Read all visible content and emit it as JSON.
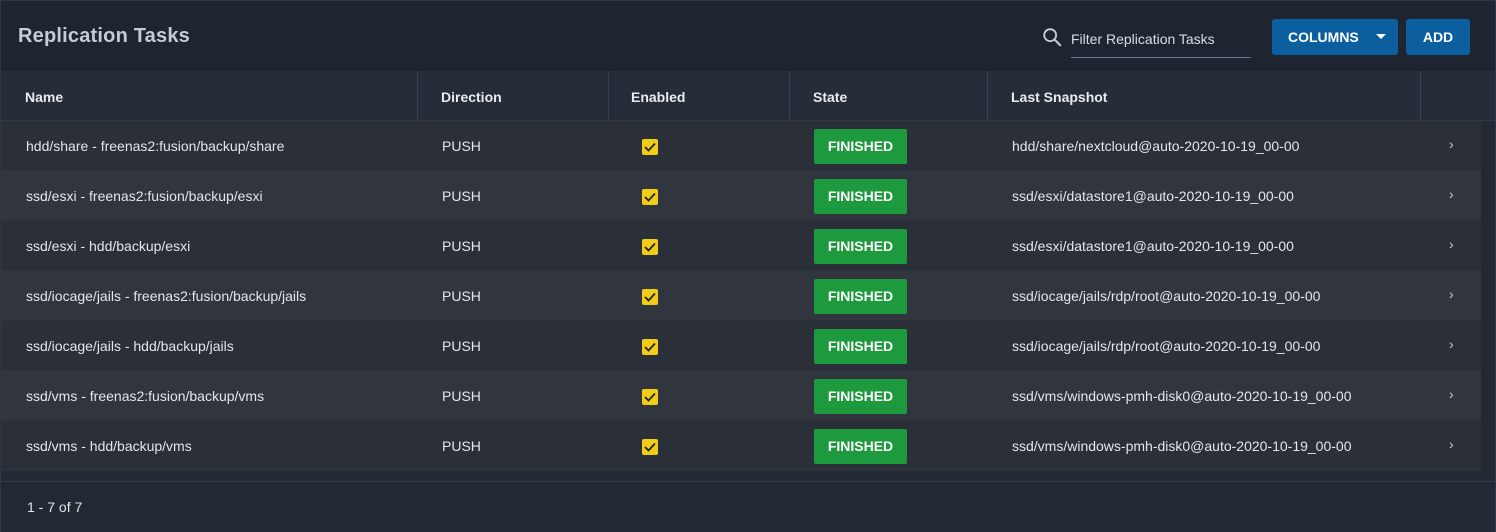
{
  "header": {
    "title": "Replication Tasks",
    "search_placeholder": "Filter Replication Tasks",
    "columns_label": "COLUMNS",
    "add_label": "ADD"
  },
  "table": {
    "columns": [
      "Name",
      "Direction",
      "Enabled",
      "State",
      "Last Snapshot"
    ],
    "rows": [
      {
        "name": "hdd/share - freenas2:fusion/backup/share",
        "direction": "PUSH",
        "enabled": true,
        "state": "FINISHED",
        "last_snapshot": "hdd/share/nextcloud@auto-2020-10-19_00-00"
      },
      {
        "name": "ssd/esxi - freenas2:fusion/backup/esxi",
        "direction": "PUSH",
        "enabled": true,
        "state": "FINISHED",
        "last_snapshot": "ssd/esxi/datastore1@auto-2020-10-19_00-00"
      },
      {
        "name": "ssd/esxi - hdd/backup/esxi",
        "direction": "PUSH",
        "enabled": true,
        "state": "FINISHED",
        "last_snapshot": "ssd/esxi/datastore1@auto-2020-10-19_00-00"
      },
      {
        "name": "ssd/iocage/jails - freenas2:fusion/backup/jails",
        "direction": "PUSH",
        "enabled": true,
        "state": "FINISHED",
        "last_snapshot": "ssd/iocage/jails/rdp/root@auto-2020-10-19_00-00"
      },
      {
        "name": "ssd/iocage/jails - hdd/backup/jails",
        "direction": "PUSH",
        "enabled": true,
        "state": "FINISHED",
        "last_snapshot": "ssd/iocage/jails/rdp/root@auto-2020-10-19_00-00"
      },
      {
        "name": "ssd/vms - freenas2:fusion/backup/vms",
        "direction": "PUSH",
        "enabled": true,
        "state": "FINISHED",
        "last_snapshot": "ssd/vms/windows-pmh-disk0@auto-2020-10-19_00-00"
      },
      {
        "name": "ssd/vms - hdd/backup/vms",
        "direction": "PUSH",
        "enabled": true,
        "state": "FINISHED",
        "last_snapshot": "ssd/vms/windows-pmh-disk0@auto-2020-10-19_00-00"
      }
    ]
  },
  "footer": {
    "pagination": "1 - 7 of 7"
  },
  "colors": {
    "accent": "#0c5f9e",
    "finished": "#1d9a3d",
    "checkbox": "#f2cd17"
  },
  "icons": {
    "search": "search-icon",
    "expand": "chevron-right-icon",
    "check": "check-icon"
  }
}
